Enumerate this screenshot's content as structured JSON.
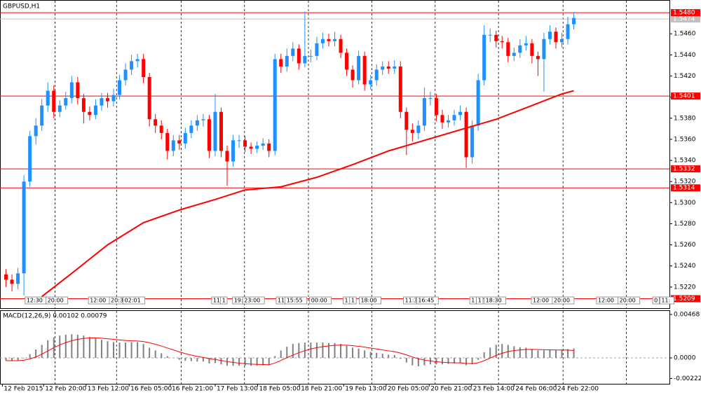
{
  "chart_data": [
    {
      "type": "candlestick",
      "title": "GBPUSD,H1",
      "xlim": [
        -1,
        111
      ],
      "ylim": [
        1.52,
        1.5492
      ],
      "yticks": [
        {
          "value": 1.522,
          "label": "1.5220"
        },
        {
          "value": 1.524,
          "label": "1.5240"
        },
        {
          "value": 1.526,
          "label": "1.5260"
        },
        {
          "value": 1.528,
          "label": "1.5280"
        },
        {
          "value": 1.53,
          "label": "1.5300"
        },
        {
          "value": 1.532,
          "label": "1.5320"
        },
        {
          "value": 1.534,
          "label": "1.5340"
        },
        {
          "value": 1.536,
          "label": "1.5360"
        },
        {
          "value": 1.538,
          "label": "1.5380"
        },
        {
          "value": 1.54,
          "label": "1.5400"
        },
        {
          "value": 1.542,
          "label": "1.5420"
        },
        {
          "value": 1.544,
          "label": "1.5440"
        },
        {
          "value": 1.546,
          "label": "1.5460"
        }
      ],
      "up_color": "#1e90ff",
      "down_color": "#ff0000",
      "open": [
        1.5232,
        1.5227,
        1.5223,
        1.5233,
        1.532,
        1.5363,
        1.5373,
        1.5392,
        1.5406,
        1.5386,
        1.5392,
        1.5399,
        1.5414,
        1.5399,
        1.5386,
        1.5383,
        1.5392,
        1.5399,
        1.5396,
        1.5402,
        1.5416,
        1.5426,
        1.5434,
        1.5436,
        1.5419,
        1.5379,
        1.5373,
        1.5366,
        1.5349,
        1.5359,
        1.5356,
        1.5366,
        1.5373,
        1.5378,
        1.5379,
        1.5349,
        1.5386,
        1.5349,
        1.5339,
        1.5359,
        1.5359,
        1.5353,
        1.5351,
        1.5354,
        1.5356,
        1.5349,
        1.5436,
        1.5429,
        1.5439,
        1.5446,
        1.5432,
        1.5439,
        1.5439,
        1.5451,
        1.5455,
        1.5453,
        1.5455,
        1.5442,
        1.5426,
        1.5416,
        1.5439,
        1.5412,
        1.5416,
        1.5426,
        1.5429,
        1.5427,
        1.5429,
        1.5386,
        1.5369,
        1.5366,
        1.5373,
        1.5399,
        1.5399,
        1.5383,
        1.5376,
        1.5378,
        1.5383,
        1.5386,
        1.5343,
        1.5373,
        1.5416,
        1.5459,
        1.5459,
        1.5453,
        1.5452,
        1.5439,
        1.5442,
        1.5449,
        1.5451,
        1.5439,
        1.5436,
        1.5455,
        1.5462,
        1.5452,
        1.5455,
        1.5469
      ],
      "high": [
        1.5237,
        1.5232,
        1.5238,
        1.5326,
        1.5368,
        1.538,
        1.5398,
        1.5414,
        1.5411,
        1.5397,
        1.5405,
        1.542,
        1.5419,
        1.5403,
        1.5391,
        1.5398,
        1.5404,
        1.5404,
        1.5408,
        1.5421,
        1.5432,
        1.544,
        1.5441,
        1.5441,
        1.5423,
        1.5384,
        1.5378,
        1.537,
        1.5364,
        1.5364,
        1.5371,
        1.5378,
        1.5383,
        1.5384,
        1.5383,
        1.5403,
        1.539,
        1.5354,
        1.5364,
        1.5364,
        1.5363,
        1.5357,
        1.5358,
        1.5361,
        1.536,
        1.5441,
        1.5441,
        1.5446,
        1.5452,
        1.545,
        1.5481,
        1.5445,
        1.5457,
        1.5461,
        1.546,
        1.5462,
        1.5459,
        1.5446,
        1.543,
        1.5444,
        1.5443,
        1.5421,
        1.5431,
        1.5434,
        1.5434,
        1.5435,
        1.5434,
        1.539,
        1.5375,
        1.5378,
        1.5409,
        1.5405,
        1.5403,
        1.5388,
        1.5383,
        1.5388,
        1.5392,
        1.539,
        1.5378,
        1.5422,
        1.5468,
        1.5465,
        1.5463,
        1.5458,
        1.5456,
        1.5447,
        1.5455,
        1.5458,
        1.5455,
        1.5443,
        1.5461,
        1.5468,
        1.5466,
        1.5461,
        1.5476,
        1.548
      ],
      "low": [
        1.522,
        1.5216,
        1.5218,
        1.5212,
        1.5315,
        1.5355,
        1.5368,
        1.5386,
        1.538,
        1.5381,
        1.5388,
        1.5394,
        1.5393,
        1.5375,
        1.5378,
        1.5379,
        1.5387,
        1.539,
        1.5391,
        1.5398,
        1.5411,
        1.5421,
        1.5428,
        1.5413,
        1.5372,
        1.5366,
        1.536,
        1.5341,
        1.5344,
        1.535,
        1.5351,
        1.5361,
        1.5368,
        1.5372,
        1.5342,
        1.5344,
        1.5343,
        1.5316,
        1.5334,
        1.5352,
        1.5348,
        1.5346,
        1.5347,
        1.535,
        1.5343,
        1.5345,
        1.5423,
        1.5424,
        1.5434,
        1.5426,
        1.5428,
        1.5433,
        1.5435,
        1.5446,
        1.5448,
        1.5448,
        1.5437,
        1.542,
        1.5409,
        1.5412,
        1.5406,
        1.5407,
        1.5411,
        1.5421,
        1.5422,
        1.5422,
        1.538,
        1.5345,
        1.5358,
        1.536,
        1.5368,
        1.5392,
        1.5377,
        1.537,
        1.5371,
        1.5373,
        1.5378,
        1.5333,
        1.5337,
        1.5368,
        1.5411,
        1.5452,
        1.5447,
        1.5446,
        1.5433,
        1.5434,
        1.5437,
        1.5444,
        1.5432,
        1.542,
        1.5405,
        1.545,
        1.5446,
        1.5447,
        1.545,
        1.5464
      ],
      "close": [
        1.5227,
        1.5223,
        1.5233,
        1.532,
        1.5363,
        1.5373,
        1.5392,
        1.5406,
        1.5386,
        1.5392,
        1.5399,
        1.5414,
        1.5399,
        1.5386,
        1.5383,
        1.5392,
        1.5399,
        1.5396,
        1.5402,
        1.5416,
        1.5426,
        1.5434,
        1.5436,
        1.5419,
        1.5379,
        1.5373,
        1.5366,
        1.5349,
        1.5359,
        1.5356,
        1.5366,
        1.5373,
        1.5378,
        1.5379,
        1.5349,
        1.5386,
        1.5349,
        1.5339,
        1.5359,
        1.5359,
        1.5353,
        1.5351,
        1.5354,
        1.5356,
        1.5349,
        1.5436,
        1.5429,
        1.5439,
        1.5446,
        1.5432,
        1.5439,
        1.5439,
        1.5451,
        1.5455,
        1.5453,
        1.5455,
        1.5442,
        1.5426,
        1.5416,
        1.5439,
        1.5412,
        1.5416,
        1.5426,
        1.5429,
        1.5427,
        1.5429,
        1.5386,
        1.5369,
        1.5366,
        1.5373,
        1.5399,
        1.5399,
        1.5383,
        1.5376,
        1.5378,
        1.5383,
        1.5386,
        1.5343,
        1.5373,
        1.5416,
        1.5459,
        1.5459,
        1.5453,
        1.5452,
        1.5439,
        1.5442,
        1.5449,
        1.5451,
        1.5439,
        1.5436,
        1.5455,
        1.5462,
        1.5452,
        1.5455,
        1.5469,
        1.5475
      ],
      "moving_average": {
        "color": "#ff0000",
        "x": [
          6,
          11,
          17,
          23,
          29,
          35,
          40,
          46,
          52,
          58,
          64,
          70,
          76,
          82,
          88,
          93,
          95
        ],
        "values": [
          1.5211,
          1.5233,
          1.526,
          1.5281,
          1.5293,
          1.5303,
          1.5312,
          1.5315,
          1.5324,
          1.5336,
          1.5349,
          1.5359,
          1.5369,
          1.5379,
          1.5392,
          1.5403,
          1.5406
        ]
      },
      "price_levels": [
        {
          "value": 1.548,
          "label": "1.5480"
        },
        1.5401,
        1.5332,
        1.5314,
        1.5209
      ],
      "level_color": "#ff0000",
      "current_price": {
        "value": 1.5474,
        "label": "1.5474"
      },
      "xgrid": [
        8.2,
        18.5,
        29.3,
        39.9,
        50.6,
        61.2,
        71.8,
        82.4,
        93.2,
        103.8
      ],
      "xticks": [
        {
          "value": -0.6,
          "label": "12 Feb 2015"
        },
        {
          "value": 6.3,
          "label": "12 Feb 20:00"
        },
        {
          "value": 13.4,
          "label": "13 Feb 12:00"
        },
        {
          "value": 20.6,
          "label": "16 Feb 05:00"
        },
        {
          "value": 27.5,
          "label": "16 Feb 21:00"
        },
        {
          "value": 35,
          "label": "17 Feb 13:00"
        },
        {
          "value": 42.1,
          "label": "18 Feb 05:00"
        },
        {
          "value": 49.1,
          "label": "18 Feb 21:00"
        },
        {
          "value": 56.5,
          "label": "19 Feb 13:00"
        },
        {
          "value": 63.6,
          "label": "20 Feb 05:00"
        },
        {
          "value": 70.8,
          "label": "20 Feb 21:00"
        },
        {
          "value": 77.9,
          "label": "23 Feb 14:00"
        },
        {
          "value": 85,
          "label": "24 Feb 06:00"
        },
        {
          "value": 92,
          "label": "24 Feb 22:00"
        }
      ],
      "event_labels": [
        {
          "x": 3.2,
          "text": "12:30"
        },
        {
          "x": 6.7,
          "text": "20:00"
        },
        {
          "x": 13.8,
          "text": "12:00"
        },
        {
          "x": 17.3,
          "text": "20:3"
        },
        {
          "x": 19.6,
          "text": "02:01"
        },
        {
          "x": 34.4,
          "text": "11:"
        },
        {
          "x": 35.9,
          "text": "1"
        },
        {
          "x": 37.9,
          "text": "19:"
        },
        {
          "x": 39.6,
          "text": "23:00"
        },
        {
          "x": 45.2,
          "text": "11"
        },
        {
          "x": 46.7,
          "text": "15:55"
        },
        {
          "x": 50.8,
          "text": "00:00"
        },
        {
          "x": 56.4,
          "text": "1"
        },
        {
          "x": 57.5,
          "text": "1"
        },
        {
          "x": 59.1,
          "text": "18:00"
        },
        {
          "x": 66.5,
          "text": "11:3"
        },
        {
          "x": 68.7,
          "text": "16:45"
        },
        {
          "x": 77.6,
          "text": "1"
        },
        {
          "x": 78.7,
          "text": "1"
        },
        {
          "x": 80,
          "text": "18:30"
        },
        {
          "x": 87.9,
          "text": "12:00"
        },
        {
          "x": 91.4,
          "text": "20:00"
        },
        {
          "x": 98.8,
          "text": "12:00"
        },
        {
          "x": 102.4,
          "text": "20:00"
        },
        {
          "x": 108.2,
          "text": "0"
        },
        {
          "x": 109.4,
          "text": "11:"
        }
      ]
    },
    {
      "type": "macd",
      "title": "MACD(12,26,9) 0.00102 0.00079",
      "ylim": [
        -0.00279,
        0.00513
      ],
      "yticks": [
        0.00468,
        {
          "value": 0,
          "label": "0.0000"
        },
        -0.00222
      ],
      "histogram": {
        "color": "#808080",
        "values": [
          -0.0003,
          -0.00035,
          -0.0003,
          -5e-05,
          0.0004,
          0.0009,
          0.0014,
          0.0019,
          0.0022,
          0.0024,
          0.0025,
          0.00255,
          0.0025,
          0.0024,
          0.00225,
          0.0021,
          0.00195,
          0.0018,
          0.0017,
          0.00165,
          0.00165,
          0.0017,
          0.0017,
          0.0015,
          0.0011,
          0.0008,
          0.0005,
          0.0002,
          0,
          -0.0002,
          -0.0003,
          -0.00035,
          -0.0004,
          -0.0004,
          -0.0006,
          -0.00055,
          -0.0007,
          -0.00085,
          -0.00085,
          -0.00085,
          -0.00085,
          -0.00085,
          -0.00085,
          -0.0008,
          -0.0008,
          0.0002,
          0.0008,
          0.0012,
          0.0015,
          0.0016,
          0.00165,
          0.00165,
          0.00165,
          0.00165,
          0.0016,
          0.0016,
          0.0015,
          0.0013,
          0.0011,
          0.001,
          0.0008,
          0.00065,
          0.00055,
          0.00045,
          0.00035,
          0.0003,
          -0.0001,
          -0.0005,
          -0.0008,
          -0.0009,
          -0.0008,
          -0.0007,
          -0.0007,
          -0.0007,
          -0.00065,
          -0.0006,
          -0.00055,
          -0.0008,
          -0.0007,
          -0.0002,
          0.0006,
          0.0011,
          0.0014,
          0.0015,
          0.0014,
          0.00125,
          0.00115,
          0.0011,
          0.00095,
          0.0008,
          0.0008,
          0.00085,
          0.0008,
          0.00085,
          0.00095,
          0.00102
        ]
      },
      "signal": {
        "color": "#ff0000",
        "values": [
          -0.0003,
          -0.0003,
          -0.0003,
          -0.00025,
          -0.0001,
          0.0001,
          0.0004,
          0.00075,
          0.0011,
          0.0014,
          0.00165,
          0.00185,
          0.002,
          0.0021,
          0.00215,
          0.00215,
          0.00212,
          0.00207,
          0.002,
          0.00193,
          0.00188,
          0.00184,
          0.00182,
          0.00176,
          0.00163,
          0.00147,
          0.00128,
          0.00107,
          0.00086,
          0.00065,
          0.00046,
          0.0003,
          0.00016,
          5e-05,
          -8e-05,
          -0.00017,
          -0.00028,
          -0.0004,
          -0.00049,
          -0.00056,
          -0.00062,
          -0.00067,
          -0.0007,
          -0.00072,
          -0.00074,
          -0.00055,
          -0.00028,
          2e-05,
          0.0003,
          0.00056,
          0.00078,
          0.00096,
          0.0011,
          0.00121,
          0.00129,
          0.00135,
          0.00138,
          0.00137,
          0.00131,
          0.00125,
          0.00116,
          0.00106,
          0.00096,
          0.00086,
          0.00076,
          0.00067,
          0.00052,
          0.00032,
          0.0001,
          -0.0001,
          -0.00024,
          -0.00033,
          -0.00041,
          -0.00047,
          -0.00051,
          -0.00053,
          -0.00054,
          -0.00059,
          -0.00061,
          -0.00053,
          -0.0003,
          -2e-05,
          0.00026,
          0.0005,
          0.00068,
          0.00079,
          0.00086,
          0.00091,
          0.00092,
          0.0009,
          0.00088,
          0.00087,
          0.00085,
          0.00085,
          0.00084,
          0.00079
        ]
      }
    }
  ]
}
